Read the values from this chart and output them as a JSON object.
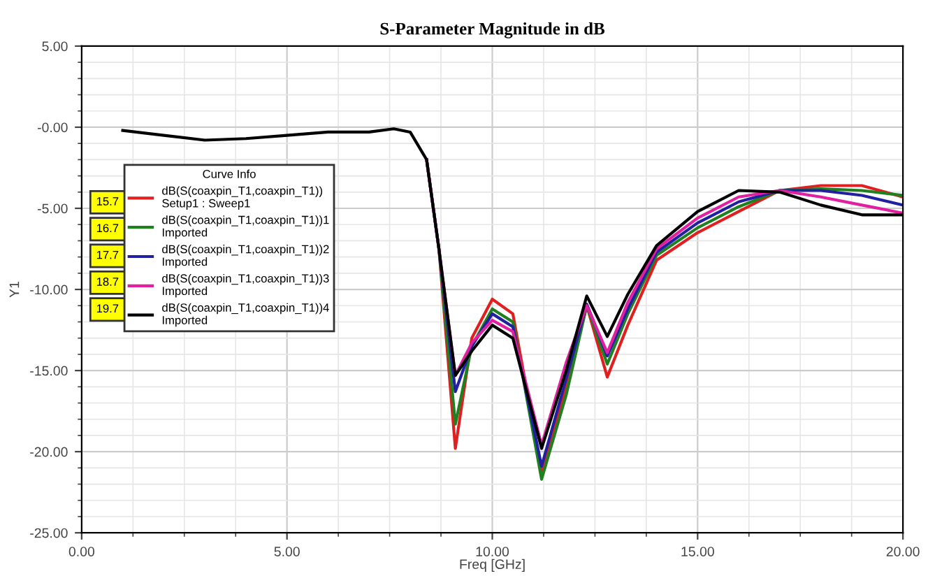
{
  "chart_data": {
    "type": "line",
    "title": "S-Parameter Magnitude in dB",
    "xlabel": "Freq [GHz]",
    "ylabel": "Y1",
    "legend_title": "Curve Info",
    "x": [
      1,
      2,
      3,
      4,
      5,
      6,
      7,
      7.6,
      8,
      8.4,
      8.7,
      9.1,
      9.5,
      10,
      10.5,
      11.2,
      11.8,
      12.3,
      12.8,
      13.3,
      14,
      15,
      16,
      17,
      18,
      19,
      20
    ],
    "series": [
      {
        "name": "dB(S(coaxpin_T1,coaxpin_T1))\nSetup1 : Sweep1",
        "color": "#e02020",
        "values": [
          null,
          null,
          null,
          null,
          null,
          null,
          null,
          null,
          null,
          -2.0,
          -7.5,
          -19.8,
          -13.0,
          -10.6,
          -11.5,
          -21.2,
          -16.0,
          -11.0,
          -15.4,
          -12.2,
          -8.2,
          -6.5,
          -5.2,
          -3.9,
          -3.6,
          -3.6,
          -4.3
        ]
      },
      {
        "name": "dB(S(coaxpin_T1,coaxpin_T1))1\nImported",
        "color": "#208020",
        "values": [
          null,
          null,
          null,
          null,
          null,
          null,
          null,
          null,
          null,
          -2.0,
          -7.5,
          -18.3,
          -13.5,
          -11.2,
          -12.0,
          -21.7,
          -16.5,
          -11.0,
          -14.6,
          -11.5,
          -7.9,
          -6.2,
          -4.9,
          -3.9,
          -3.8,
          -3.9,
          -4.2
        ]
      },
      {
        "name": "dB(S(coaxpin_T1,coaxpin_T1))2\nImported",
        "color": "#2020a0",
        "values": [
          null,
          null,
          null,
          null,
          null,
          null,
          null,
          null,
          null,
          -2.0,
          -7.5,
          -16.3,
          -13.5,
          -11.5,
          -12.3,
          -20.9,
          -15.5,
          -10.9,
          -14.1,
          -11.2,
          -7.7,
          -5.9,
          -4.6,
          -3.9,
          -3.9,
          -4.2,
          -4.8
        ]
      },
      {
        "name": "dB(S(coaxpin_T1,coaxpin_T1))3\nImported",
        "color": "#e020a0",
        "values": [
          null,
          null,
          null,
          null,
          null,
          null,
          null,
          null,
          null,
          -2.0,
          -7.5,
          -15.3,
          -13.3,
          -11.9,
          -12.6,
          -19.6,
          -14.5,
          -11.0,
          -13.9,
          -10.8,
          -7.5,
          -5.6,
          -4.3,
          -3.9,
          -4.3,
          -4.8,
          -5.3
        ]
      },
      {
        "name": "dB(S(coaxpin_T1,coaxpin_T1))4\nImported",
        "color": "#000000",
        "values": [
          -0.2,
          -0.5,
          -0.8,
          -0.7,
          -0.5,
          -0.3,
          -0.3,
          -0.1,
          -0.3,
          -2.0,
          -7.5,
          -15.3,
          -13.8,
          -12.2,
          -13.0,
          -19.8,
          -15.0,
          -10.4,
          -12.9,
          -10.3,
          -7.3,
          -5.2,
          -3.9,
          -4.0,
          -4.8,
          -5.4,
          -5.4
        ]
      }
    ],
    "annotations": [
      "15.7",
      "16.7",
      "17.7",
      "18.7",
      "19.7"
    ],
    "xlim": [
      0,
      20
    ],
    "ylim": [
      -25,
      5
    ],
    "xticks": [
      {
        "value": 0,
        "label": "0.00"
      },
      {
        "value": 5,
        "label": "5.00"
      },
      {
        "value": 10,
        "label": "10.00"
      },
      {
        "value": 15,
        "label": "15.00"
      },
      {
        "value": 20,
        "label": "20.00"
      }
    ],
    "yticks": [
      {
        "value": 5,
        "label": "5.00"
      },
      {
        "value": 0,
        "label": "-0.00"
      },
      {
        "value": -5,
        "label": "-5.00"
      },
      {
        "value": -10,
        "label": "-10.00"
      },
      {
        "value": -15,
        "label": "-15.00"
      },
      {
        "value": -20,
        "label": "-20.00"
      },
      {
        "value": -25,
        "label": "-25.00"
      }
    ],
    "grid": true,
    "legend": "left",
    "marker": "none",
    "line_style": "solid"
  }
}
